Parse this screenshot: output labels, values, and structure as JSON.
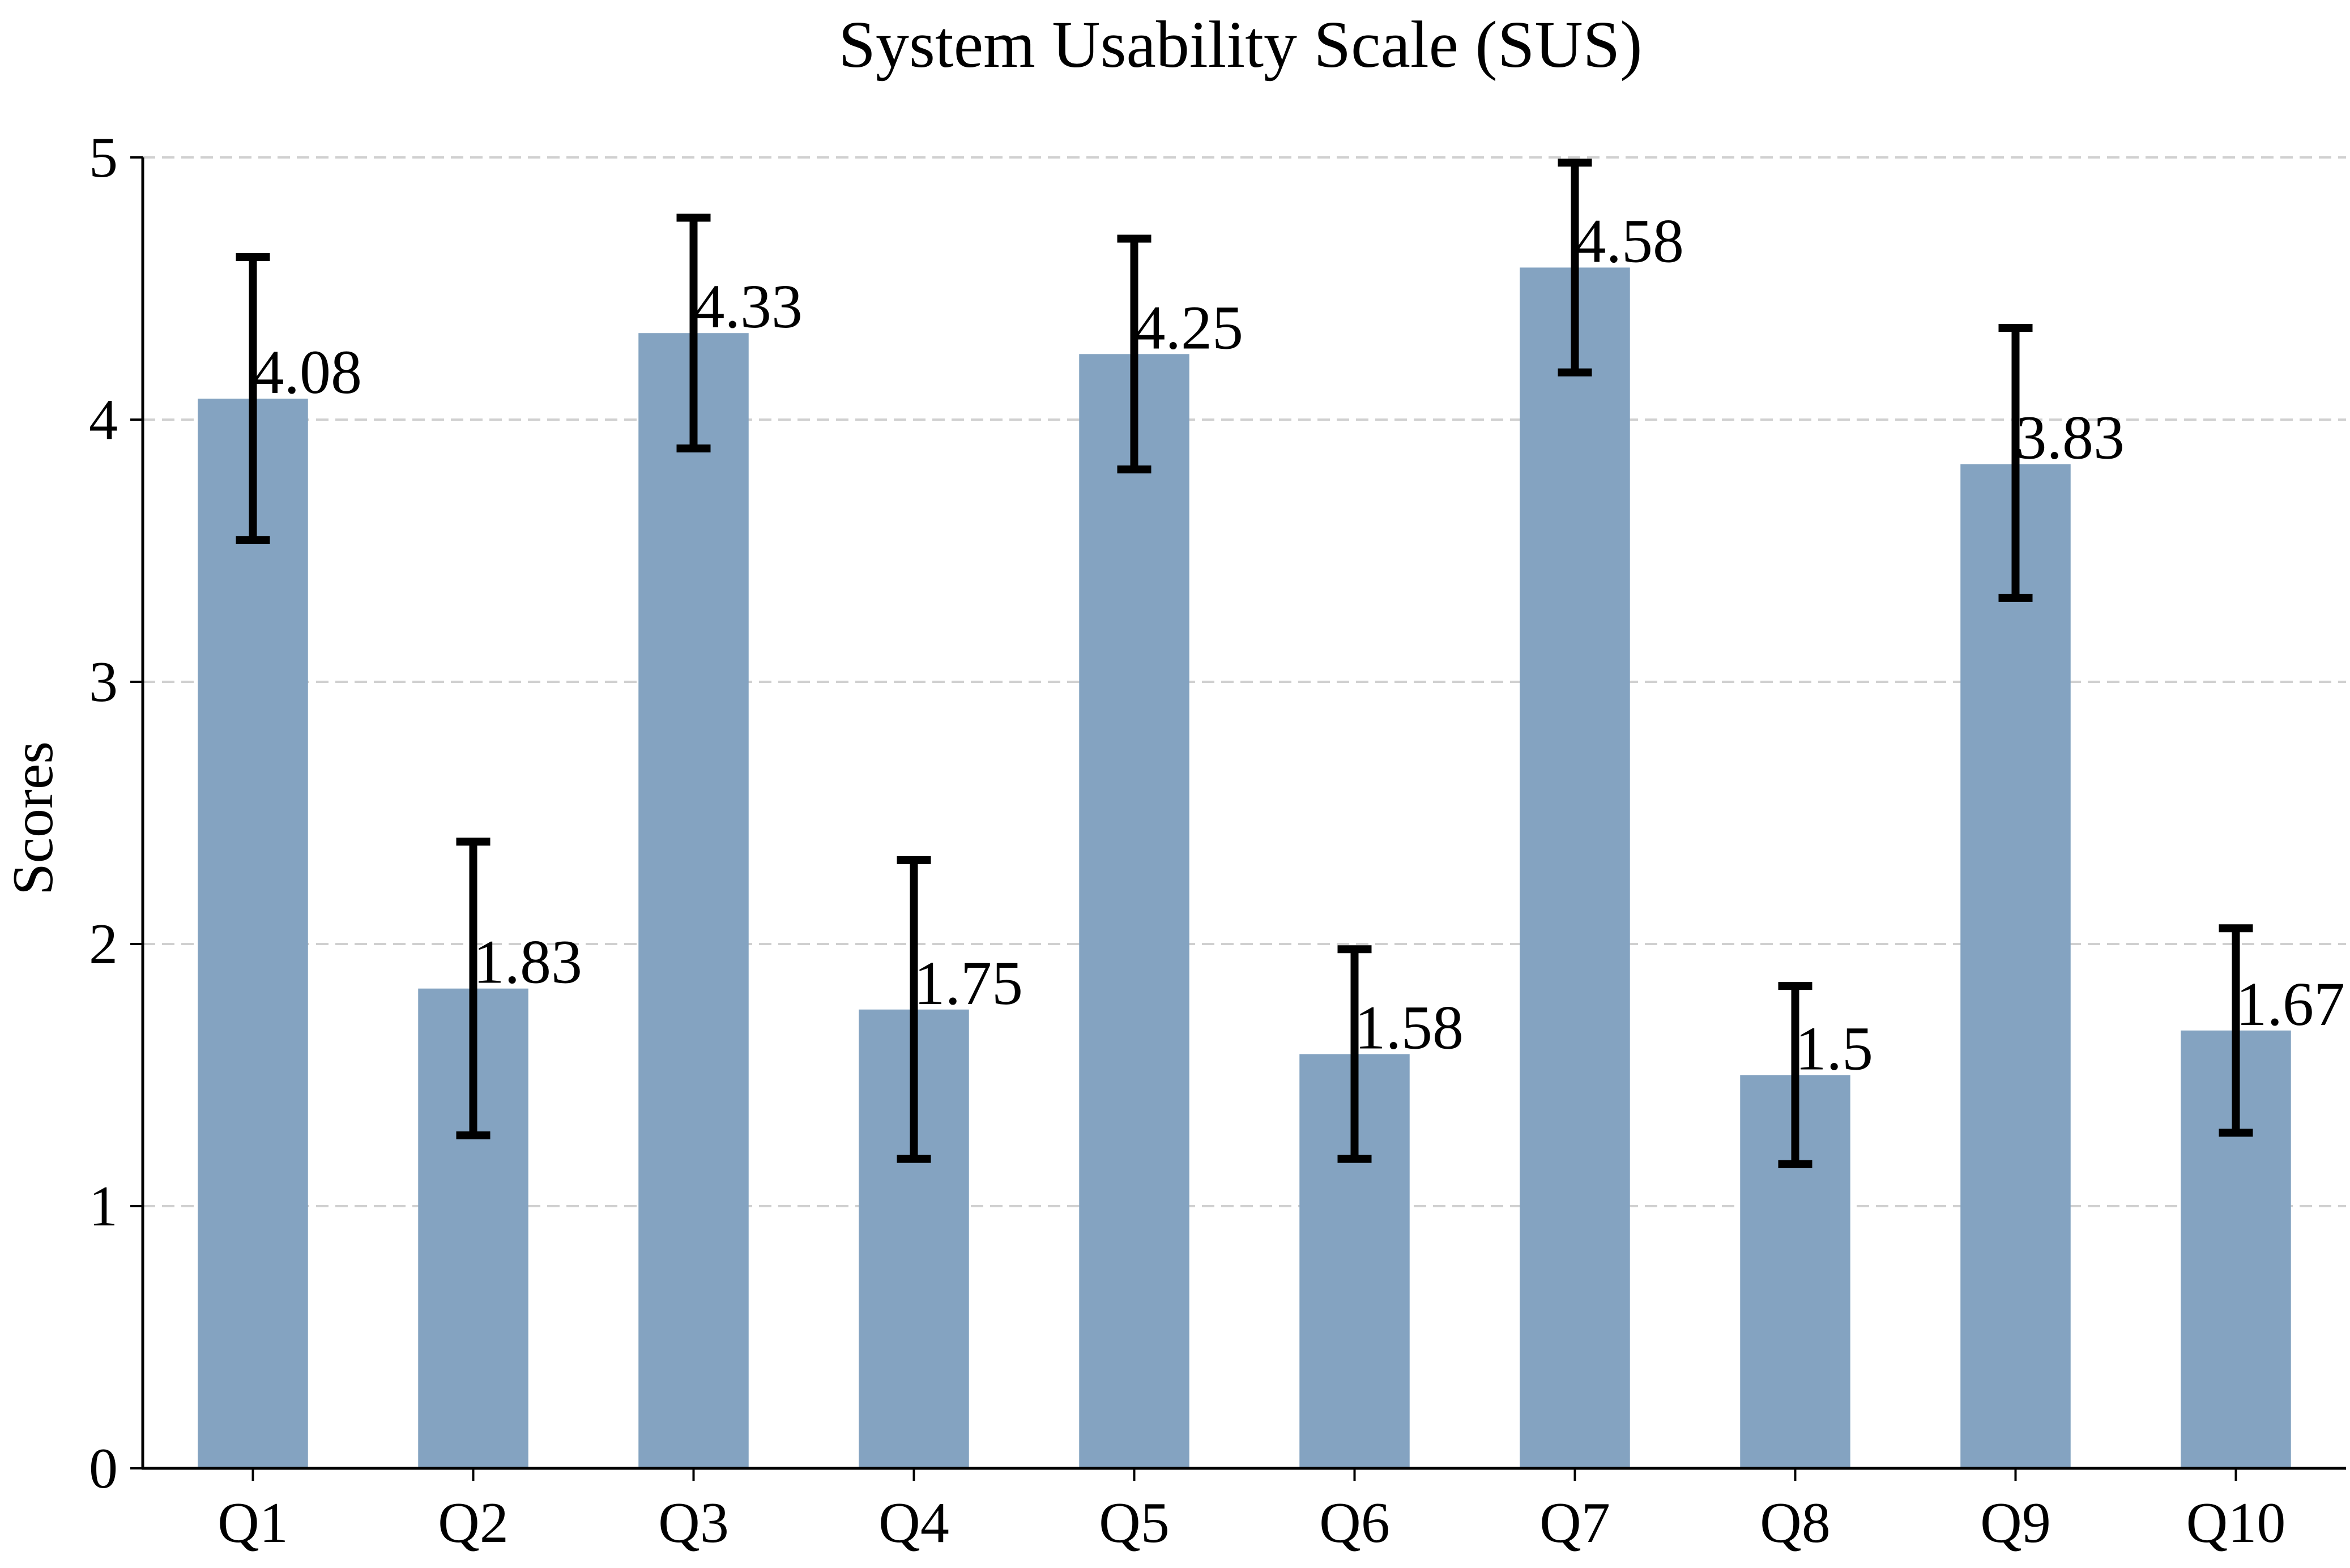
{
  "chart_data": {
    "type": "bar",
    "title": "System Usability Scale (SUS)",
    "xlabel": "",
    "ylabel": "Scores",
    "categories": [
      "Q1",
      "Q2",
      "Q3",
      "Q4",
      "Q5",
      "Q6",
      "Q7",
      "Q8",
      "Q9",
      "Q10"
    ],
    "values": [
      4.08,
      1.83,
      4.33,
      1.75,
      4.25,
      1.58,
      4.58,
      1.5,
      3.83,
      1.67
    ],
    "value_labels": [
      "4.08",
      "1.83",
      "4.33",
      "1.75",
      "4.25",
      "1.58",
      "4.58",
      "1.5",
      "3.83",
      "1.67"
    ],
    "error_low": [
      3.54,
      1.27,
      3.89,
      1.18,
      3.81,
      1.18,
      4.18,
      1.16,
      3.32,
      1.28
    ],
    "error_high": [
      4.62,
      2.39,
      4.77,
      2.32,
      4.69,
      1.98,
      4.98,
      1.84,
      4.35,
      2.06
    ],
    "ylim": [
      0,
      5
    ],
    "yticks": [
      0,
      1,
      2,
      3,
      4,
      5
    ],
    "grid": "horizontal-dashed",
    "bar_color": "#84a3c1",
    "error_color": "#000000",
    "grid_color": "#d0d0d0"
  }
}
